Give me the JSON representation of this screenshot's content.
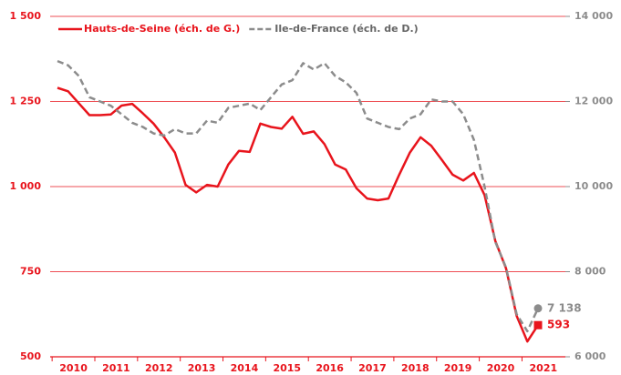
{
  "chart_data": {
    "type": "line",
    "categories": [
      "2010",
      null,
      null,
      null,
      "2011",
      null,
      null,
      null,
      "2012",
      null,
      null,
      null,
      "2013",
      null,
      null,
      null,
      "2014",
      null,
      null,
      null,
      "2015",
      null,
      null,
      null,
      "2016",
      null,
      null,
      null,
      "2017",
      null,
      null,
      null,
      "2018",
      null,
      null,
      null,
      "2019",
      null,
      null,
      null,
      "2020",
      null,
      null,
      null,
      "2021",
      null
    ],
    "series": [
      {
        "name": "Hauts-de-Seine (éch. de G.)",
        "color": "#e8141c",
        "dash": false,
        "values": [
          1290,
          1280,
          1245,
          1210,
          1210,
          1212,
          1238,
          1243,
          1215,
          1185,
          1145,
          1100,
          1005,
          983,
          1005,
          1000,
          1065,
          1105,
          1102,
          1185,
          1175,
          1170,
          1205,
          1155,
          1162,
          1125,
          1065,
          1050,
          995,
          965,
          960,
          965,
          1035,
          1100,
          1145,
          1120,
          1078,
          1035,
          1018,
          1040,
          975,
          840,
          760,
          620,
          545,
          593
        ]
      },
      {
        "name": "Ile-de-France (éch. de D.)",
        "color": "#8c8c8c",
        "dash": true,
        "axis": "y2",
        "values": [
          12950,
          12850,
          12600,
          12100,
          12000,
          11900,
          11700,
          11500,
          11400,
          11250,
          11200,
          11350,
          11250,
          11250,
          11550,
          11500,
          11850,
          11900,
          11950,
          11800,
          12100,
          12400,
          12500,
          12900,
          12750,
          12900,
          12600,
          12450,
          12200,
          11600,
          11500,
          11400,
          11350,
          11600,
          11700,
          12050,
          12000,
          12000,
          11700,
          11100,
          10000,
          8700,
          8100,
          7000,
          6600,
          7138
        ],
        "value_labels": [
          null,
          null,
          null,
          null,
          null,
          null,
          null,
          null,
          null,
          null,
          null,
          null,
          null,
          null,
          null,
          null,
          null,
          null,
          null,
          null,
          null,
          null,
          null,
          null,
          null,
          null,
          null,
          null,
          null,
          null,
          null,
          null,
          null,
          null,
          null,
          null,
          null,
          null,
          null,
          null,
          null,
          null,
          null,
          null,
          null,
          "7 138"
        ]
      }
    ],
    "ylim": [
      500,
      1500
    ],
    "yticks": [
      500,
      750,
      {
        "value": 1000,
        "label": "1 000"
      },
      {
        "value": 1250,
        "label": "1 250"
      },
      {
        "value": 1500,
        "label": "1 500"
      }
    ],
    "y2lim": [
      6000,
      14000
    ],
    "y2ticks": [
      {
        "value": 6000,
        "label": "6 000"
      },
      {
        "value": 8000,
        "label": "8 000"
      },
      {
        "value": 10000,
        "label": "10 000"
      },
      {
        "value": 12000,
        "label": "12 000"
      },
      {
        "value": 14000,
        "label": "14 000"
      }
    ],
    "grid": true,
    "legend": "top-left"
  }
}
